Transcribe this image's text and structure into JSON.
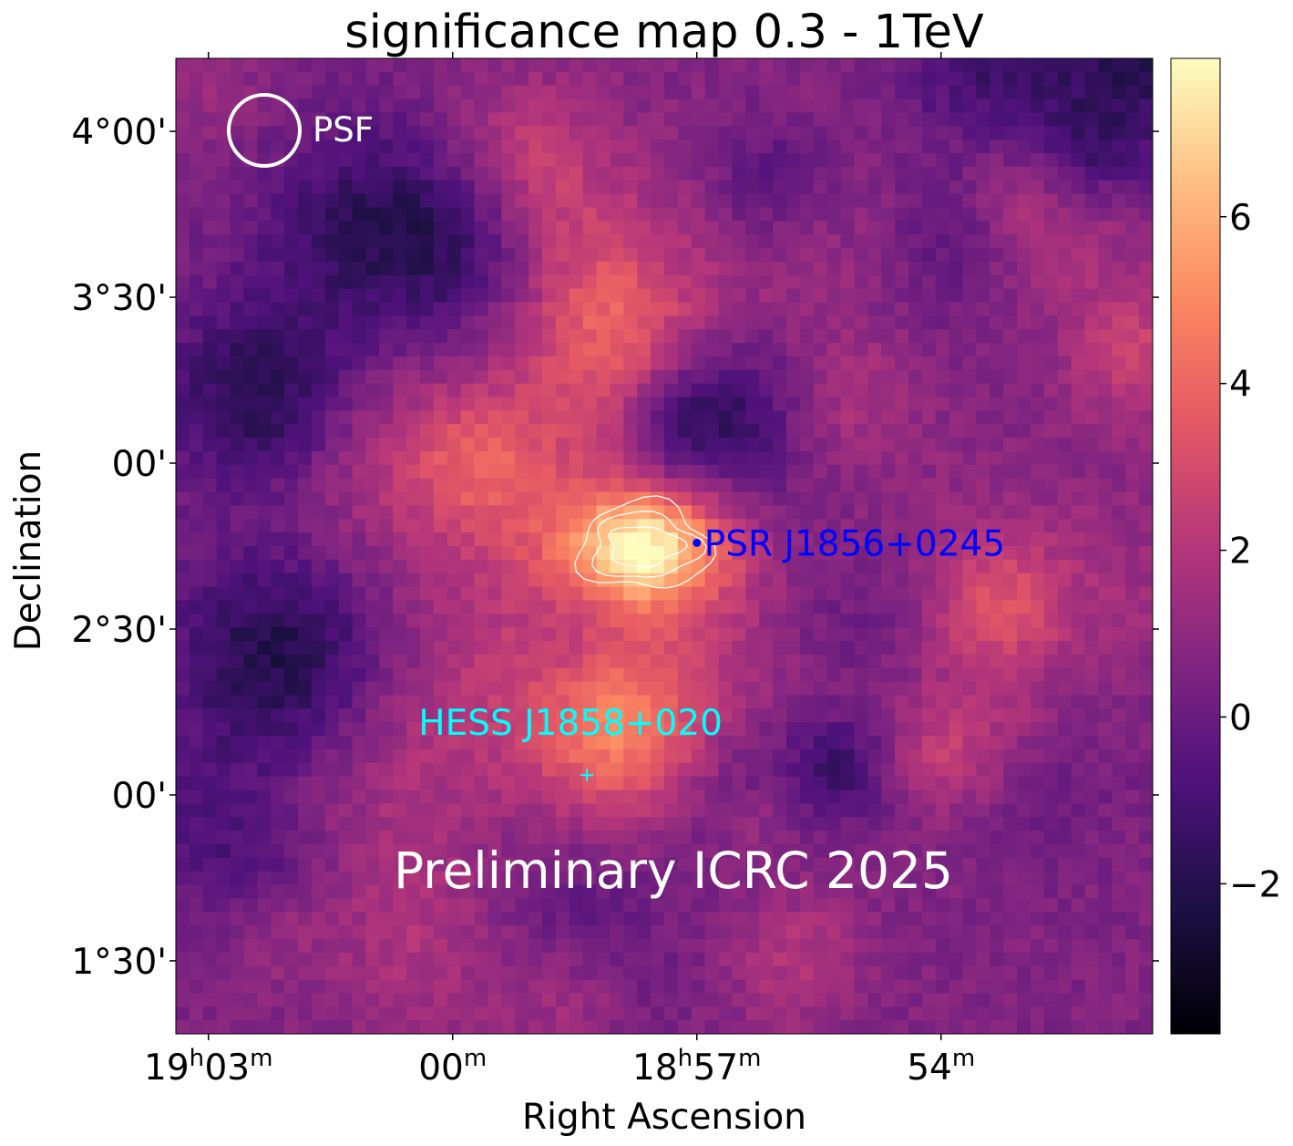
{
  "chart_data": {
    "type": "heatmap",
    "title": "significance map 0.3 - 1TeV",
    "xlabel": "Right Ascension",
    "ylabel": "Declination",
    "colormap": "magma",
    "colorbar": {
      "vmin": -3.8,
      "vmax": 7.9,
      "ticks": [
        -2,
        0,
        2,
        4,
        6
      ],
      "tick_labels": [
        "−2",
        "0",
        "2",
        "4",
        "6"
      ]
    },
    "x_ticks": [
      {
        "ra_min": 1143,
        "base": "19",
        "unit1": "h",
        "min": "03",
        "unit2": "m"
      },
      {
        "ra_min": 1140,
        "base": "00",
        "unit1": "m"
      },
      {
        "ra_min": 1137,
        "base": "18",
        "unit1": "h",
        "min": "57",
        "unit2": "m"
      },
      {
        "ra_min": 1134,
        "base": "54",
        "unit1": "m"
      }
    ],
    "xlim_ra_min": [
      1143.4,
      1131.4
    ],
    "y_ticks": [
      {
        "dec_deg": 4.0,
        "label": "4°00'"
      },
      {
        "dec_deg": 3.5,
        "label": "3°30'"
      },
      {
        "dec_deg": 3.0,
        "label": "00'"
      },
      {
        "dec_deg": 2.5,
        "label": "2°30'"
      },
      {
        "dec_deg": 2.0,
        "label": "00'"
      },
      {
        "dec_deg": 1.5,
        "label": "1°30'"
      }
    ],
    "ylim_dec_deg": [
      1.28,
      4.22
    ],
    "hotspot": {
      "ra_min": 1137.65,
      "dec_deg": 2.75,
      "peak_sigma": 7.5
    },
    "contour_levels": [
      5,
      6,
      7
    ],
    "sources": [
      {
        "name": "PSR J1856+0245",
        "ra_min": 1137.0,
        "dec_deg": 2.76,
        "color": "#0000ff",
        "marker": "dot"
      },
      {
        "name": "HESS J1858+020",
        "ra_min": 1138.35,
        "dec_deg": 2.06,
        "color": "#00ffff",
        "marker": "plus"
      }
    ],
    "psf": {
      "label": "PSF",
      "color": "#ffffff"
    },
    "watermark": "Preliminary ICRC 2025"
  }
}
